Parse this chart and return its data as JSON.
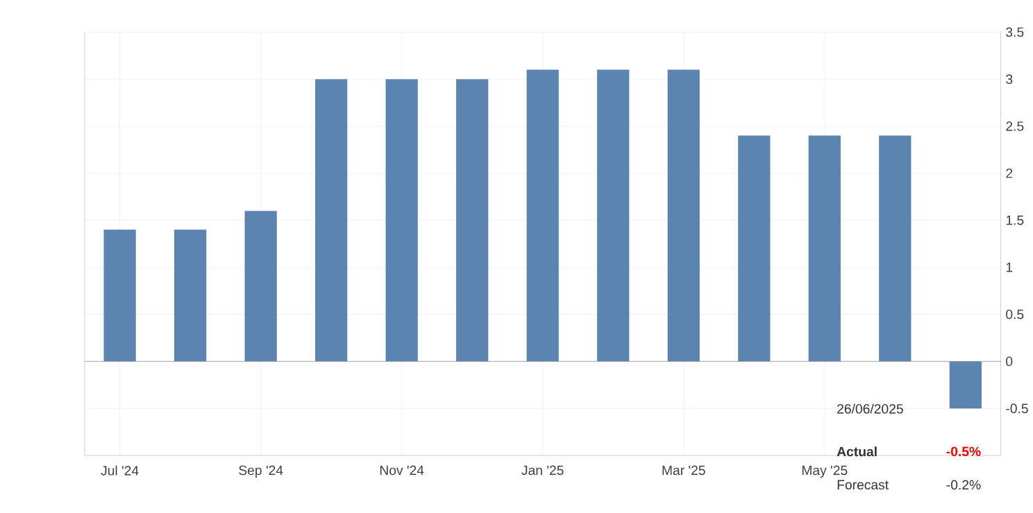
{
  "chart_data": {
    "type": "bar",
    "categories": [
      "Jul '24",
      null,
      "Sep '24",
      null,
      "Nov '24",
      null,
      "Jan '25",
      null,
      "Mar '25",
      null,
      "May '25",
      null,
      null
    ],
    "values": [
      1.4,
      1.4,
      1.6,
      3.0,
      3.0,
      3.0,
      3.1,
      3.1,
      3.1,
      2.4,
      2.4,
      2.4,
      -0.5
    ],
    "color": "#5b84b1",
    "ylim": [
      -1,
      3.5
    ],
    "yticks": [
      -0.5,
      0,
      0.5,
      1,
      1.5,
      2,
      2.5,
      3,
      3.5
    ],
    "grid": true,
    "annotations": [
      "26/06/2025",
      "Actual",
      "-0.5%",
      "Forecast",
      "-0.2%"
    ]
  }
}
